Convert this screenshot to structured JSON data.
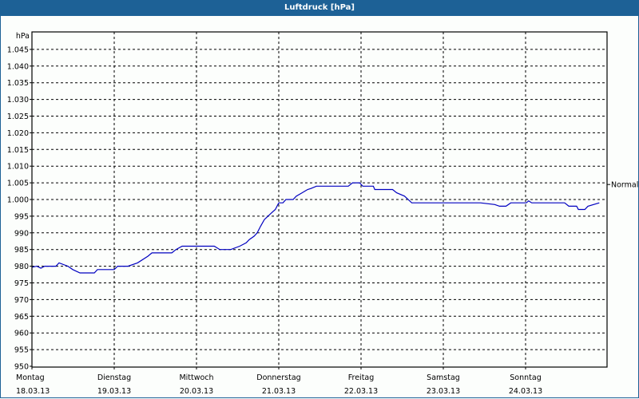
{
  "window": {
    "title": "Luftdruck [hPa]"
  },
  "chart_data": {
    "type": "line",
    "title": "Luftdruck [hPa]",
    "ylabel": "hPa",
    "xlabel": "",
    "ylim": [
      950,
      1045
    ],
    "y_ticks": [
      "950",
      "955",
      "960",
      "965",
      "970",
      "975",
      "980",
      "985",
      "990",
      "995",
      "1.000",
      "1.005",
      "1.010",
      "1.015",
      "1.020",
      "1.025",
      "1.030",
      "1.035",
      "1.040",
      "1.045"
    ],
    "x_ticks": [
      {
        "day": "Montag",
        "date": "18.03.13"
      },
      {
        "day": "Dienstag",
        "date": "19.03.13"
      },
      {
        "day": "Mittwoch",
        "date": "20.03.13"
      },
      {
        "day": "Donnerstag",
        "date": "21.03.13"
      },
      {
        "day": "Freitag",
        "date": "22.03.13"
      },
      {
        "day": "Samstag",
        "date": "23.03.13"
      },
      {
        "day": "Sonntag",
        "date": "24.03.13"
      }
    ],
    "grid": true,
    "reference_line": {
      "label": "Normal",
      "value": 1004.5
    },
    "series": [
      {
        "name": "Luftdruck",
        "color": "#0000c0",
        "x_hours": [
          0,
          1.4,
          2.6,
          3.7,
          7,
          7.9,
          10.5,
          11.9,
          14,
          18.2,
          19.1,
          24,
          25,
          28,
          30.8,
          33.8,
          35,
          40.8,
          42,
          43.8,
          53.2,
          54.8,
          58,
          60.6,
          62.5,
          63.4,
          64.8,
          65.7,
          66.7,
          67.8,
          69.9,
          71,
          72,
          73.2,
          74.1,
          76.2,
          77.1,
          78.8,
          80.4,
          81.4,
          83,
          84.2,
          92.3,
          93.5,
          95.6,
          96.5,
          99.6,
          100,
          105.2,
          106.4,
          108.7,
          110.8,
          130.8,
          135,
          136.4,
          138.3,
          139.7,
          144.2,
          144.9,
          145.8,
          155.4,
          156.6,
          158.9,
          159.4,
          161.3,
          162.2,
          165.5
        ],
        "values": [
          979.7,
          980,
          979.4,
          980,
          980,
          981,
          980,
          979,
          978,
          978,
          979,
          979,
          980,
          980,
          981,
          983,
          984,
          984,
          985,
          986,
          986,
          985,
          985,
          986,
          987,
          988,
          989,
          990,
          992,
          994,
          996,
          997,
          999,
          999,
          1000,
          1000,
          1001,
          1002,
          1003,
          1003.3,
          1004,
          1004,
          1004,
          1005,
          1005,
          1004,
          1004,
          1003,
          1003,
          1002,
          1001,
          999,
          999,
          998.5,
          998,
          998,
          999,
          999,
          999.6,
          999,
          999,
          998,
          998,
          997,
          997,
          998,
          999
        ]
      }
    ]
  }
}
